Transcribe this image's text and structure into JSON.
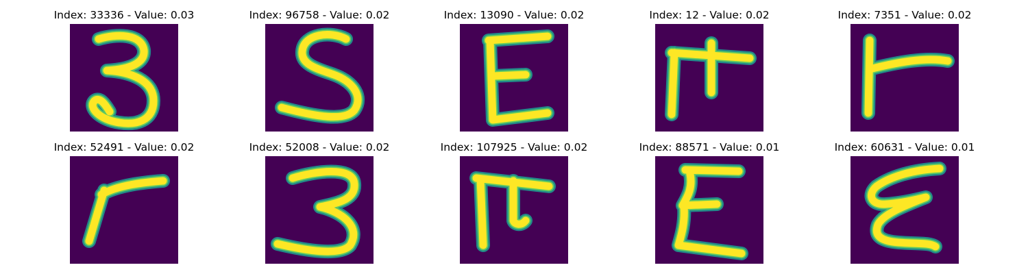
{
  "figure": {
    "colors": {
      "background": "#440154",
      "stroke_low": "#21918c",
      "stroke_mid": "#5ec962",
      "stroke_high": "#fde725"
    },
    "panels": [
      {
        "title": "Index: 33336 - Value: 0.03",
        "index": 33336,
        "value": 0.03,
        "glyph": "3"
      },
      {
        "title": "Index: 96758 - Value: 0.02",
        "index": 96758,
        "value": 0.02,
        "glyph": "S"
      },
      {
        "title": "Index: 13090 - Value: 0.02",
        "index": 13090,
        "value": 0.02,
        "glyph": "E"
      },
      {
        "title": "Index: 12 - Value: 0.02",
        "index": 12,
        "value": 0.02,
        "glyph": "pi"
      },
      {
        "title": "Index: 7351 - Value: 0.02",
        "index": 7351,
        "value": 0.02,
        "glyph": "F"
      },
      {
        "title": "Index: 52491 - Value: 0.02",
        "index": 52491,
        "value": 0.02,
        "glyph": "r"
      },
      {
        "title": "Index: 52008 - Value: 0.02",
        "index": 52008,
        "value": 0.02,
        "glyph": "3"
      },
      {
        "title": "Index: 107925 - Value: 0.02",
        "index": 107925,
        "value": 0.02,
        "glyph": "pi"
      },
      {
        "title": "Index: 88571 - Value: 0.01",
        "index": 88571,
        "value": 0.01,
        "glyph": "sigma"
      },
      {
        "title": "Index: 60631 - Value: 0.01",
        "index": 60631,
        "value": 0.01,
        "glyph": "E"
      }
    ]
  }
}
